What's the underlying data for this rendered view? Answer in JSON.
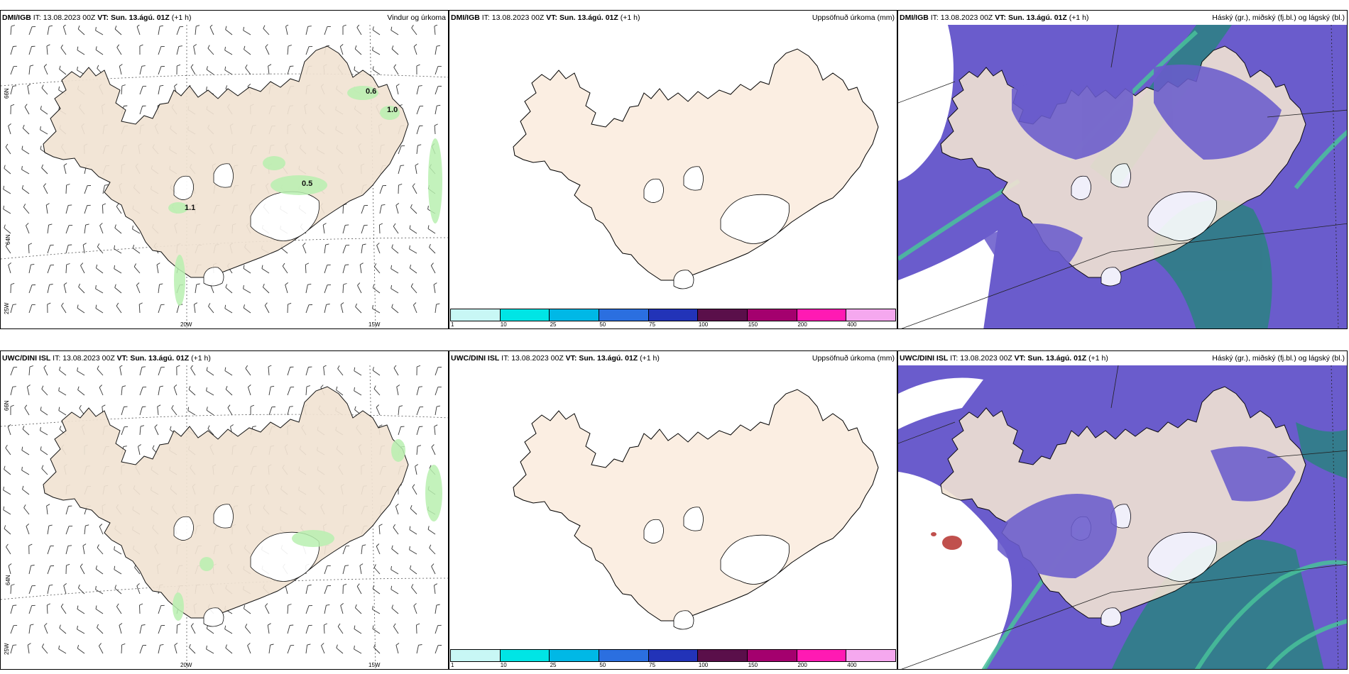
{
  "common": {
    "it_label": "IT:",
    "it_value": "13.08.2023 00Z",
    "vt_label": "VT:",
    "vt_value": "Sun. 13.ágú. 01Z",
    "lead": "(+1 h)"
  },
  "panels": [
    {
      "model": "DMI/IGB",
      "field": "Vindur og úrkoma"
    },
    {
      "model": "DMI/IGB",
      "field": "Uppsöfnuð úrkoma (mm)"
    },
    {
      "model": "DMI/IGB",
      "field": "Háský (gr.), miðský (fj.bl.) og lágský (bl.)"
    },
    {
      "model": "UWC/DINI ISL",
      "field": ""
    },
    {
      "model": "UWC/DINI ISL",
      "field": "Uppsöfnuð úrkoma (mm)"
    },
    {
      "model": "UWC/DINI ISL",
      "field": "Háský (gr.), miðský (fj.bl.) og lágský (bl.)"
    }
  ],
  "grid_labels": {
    "lat_66": "66N",
    "lat_64": "64N",
    "lon_25": "25W",
    "lon_20": "20W",
    "lon_15": "15W"
  },
  "precip_values": [
    "0.6",
    "1.0",
    "0.5",
    "1.1"
  ],
  "legend": {
    "ticks": [
      "1",
      "10",
      "25",
      "50",
      "75",
      "100",
      "150",
      "200",
      "400"
    ],
    "colors": [
      "#c8f7f5",
      "#00e5e5",
      "#00b8e6",
      "#2b6fe0",
      "#2233b8",
      "#5a0f4a",
      "#a4006e",
      "#ff1ab3",
      "#f5a8ef"
    ]
  },
  "colors": {
    "land": "#f1e3d3",
    "land_precip": "#fbeee2",
    "high_cloud": "#6a5ccc",
    "mid_cloud": "#2f7f86",
    "low_cloud": "#49c29a",
    "precip_light": "#b9f0b0"
  }
}
